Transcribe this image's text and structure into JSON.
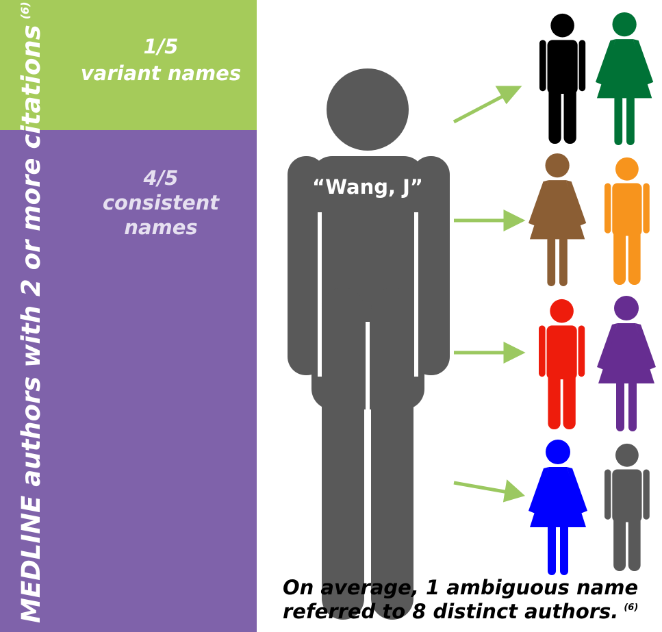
{
  "left_panel": {
    "title": "MEDLINE authors with 2 or more citations",
    "reference": "(6)",
    "segments": [
      {
        "fraction": "1/5",
        "label": "variant names"
      },
      {
        "fraction": "4/5",
        "label_lines": [
          "consistent",
          "names"
        ]
      }
    ]
  },
  "center": {
    "label": "“Wang, J”"
  },
  "footnote": {
    "lines": [
      "On average, 1 ambiguous name",
      "referred to 8 distinct authors."
    ],
    "reference": "(6)"
  }
}
